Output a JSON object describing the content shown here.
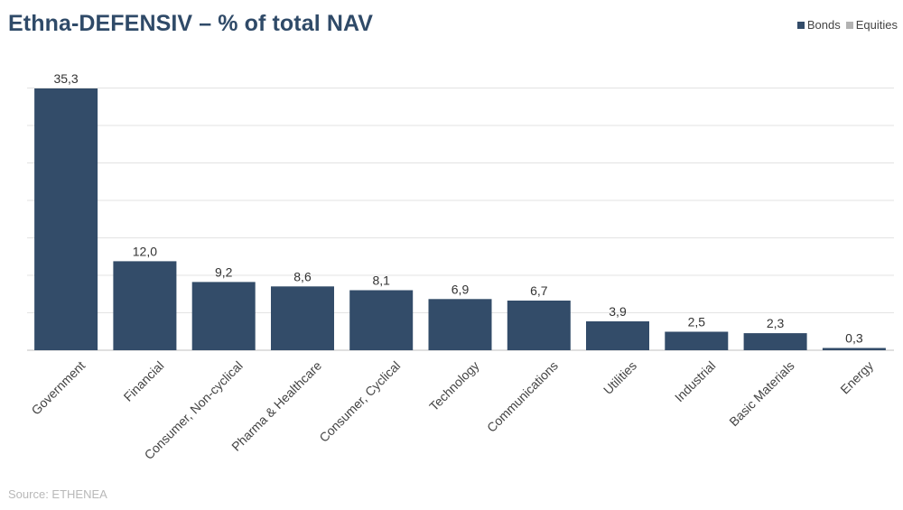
{
  "header": {
    "title": "Ethna-DEFENSIV – % of total NAV"
  },
  "legend": [
    {
      "label": "Bonds",
      "color": "#334c69"
    },
    {
      "label": "Equities",
      "color": "#b3b3b3"
    }
  ],
  "footer": {
    "source": "Source: ETHENEA"
  },
  "chart_data": {
    "type": "bar",
    "categories": [
      "Government",
      "Financial",
      "Consumer, Non-cyclical",
      "Pharma & Healthcare",
      "Consumer, Cyclical",
      "Technology",
      "Communications",
      "Utilities",
      "Industrial",
      "Basic Materials",
      "Energy"
    ],
    "series": [
      {
        "name": "Bonds",
        "values": [
          35.3,
          12.0,
          9.2,
          8.6,
          8.1,
          6.9,
          6.7,
          3.9,
          2.5,
          2.3,
          0.3
        ]
      }
    ],
    "value_labels": [
      "35,3",
      "12,0",
      "9,2",
      "8,6",
      "8,1",
      "6,9",
      "6,7",
      "3,9",
      "2,5",
      "2,3",
      "0,3"
    ],
    "ylim": [
      0,
      35
    ],
    "grid": true,
    "legend_position": "top-right",
    "bar_color": "#334c69"
  }
}
